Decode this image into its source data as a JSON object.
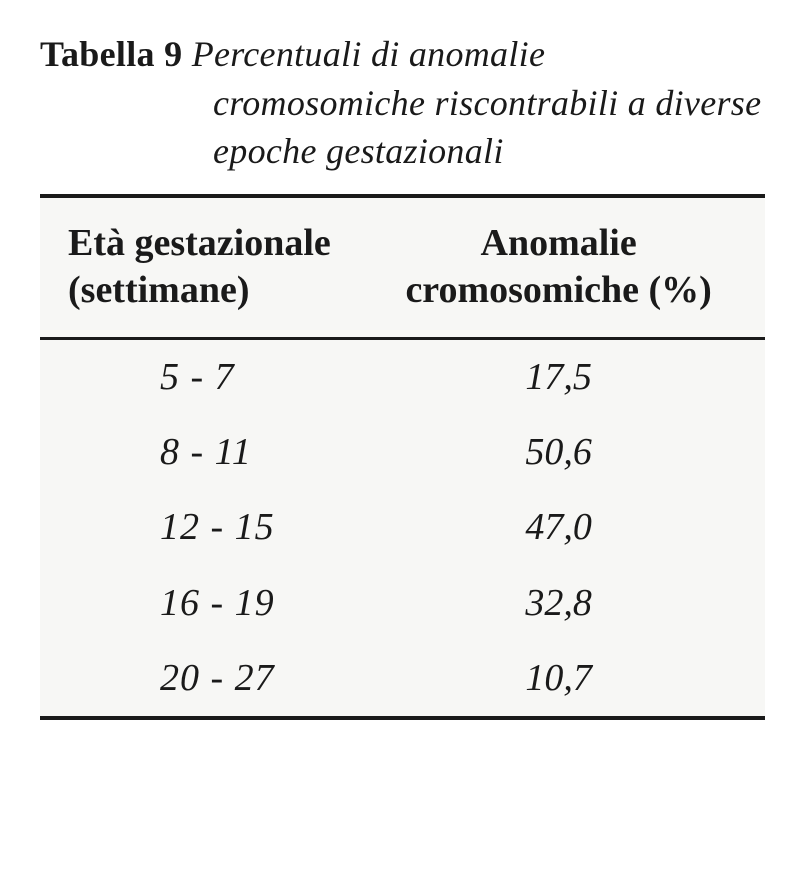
{
  "title": {
    "label": "Tabella 9",
    "line1_rest": "Percentuali di anomalie",
    "line2": "cromosomiche riscontrabili a diverse",
    "line3": "epoche gestazionali"
  },
  "table": {
    "type": "table",
    "background_color": "#f7f7f5",
    "rule_color": "#1a1a1a",
    "text_color": "#1a1a1a",
    "header_fontsize": 38,
    "body_fontsize": 38,
    "body_font_style": "italic",
    "columns": [
      {
        "header_line1": "Età gestazionale",
        "header_line2": "(settimane)",
        "align": "left"
      },
      {
        "header_line1": "Anomalie",
        "header_line2": "cromosomiche (%)",
        "align": "center"
      }
    ],
    "rows": [
      {
        "age": "5 - 7",
        "value": "17,5"
      },
      {
        "age": "8 - 11",
        "value": "50,6"
      },
      {
        "age": "12 - 15",
        "value": "47,0"
      },
      {
        "age": "16 - 19",
        "value": "32,8"
      },
      {
        "age": "20 - 27",
        "value": "10,7"
      }
    ]
  }
}
